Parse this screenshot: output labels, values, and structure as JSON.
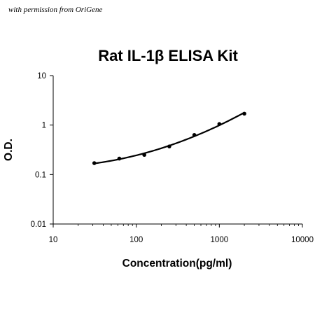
{
  "permission_note": "with permission from OriGene",
  "chart_data": {
    "type": "scatter",
    "title": "Rat IL-1β ELISA Kit",
    "xlabel": "Concentration(pg/ml)",
    "ylabel": "O.D.",
    "x_scale": "log",
    "y_scale": "log",
    "xlim": [
      10,
      10000
    ],
    "ylim": [
      0.01,
      10
    ],
    "x_ticks": [
      "10",
      "100",
      "1000",
      "10000"
    ],
    "y_ticks": [
      "10",
      "1",
      "0.1",
      "0.01"
    ],
    "grid": false,
    "legend": "none",
    "fit_curve": true,
    "series": [
      {
        "x": [
          31.25,
          62.5,
          125,
          250,
          500,
          1000,
          2000
        ],
        "y": [
          0.17,
          0.21,
          0.25,
          0.37,
          0.63,
          1.05,
          1.7
        ]
      }
    ],
    "colors": {
      "marker": "#000000",
      "curve": "#000000",
      "axis": "#000000"
    }
  }
}
